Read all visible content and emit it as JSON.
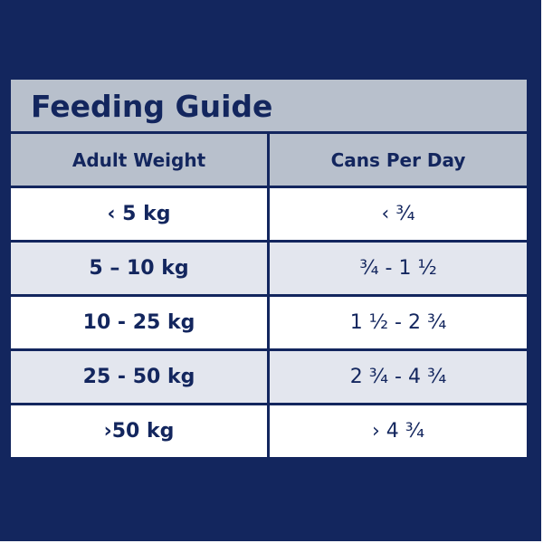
{
  "title": "Feeding Guide",
  "columns": {
    "weight": "Adult Weight",
    "cans": "Cans Per Day"
  },
  "rows": [
    {
      "weight": "‹ 5 kg",
      "cans": "‹ ¾"
    },
    {
      "weight": "5 – 10 kg",
      "cans": "¾ - 1 ½"
    },
    {
      "weight": "10 - 25 kg",
      "cans": "1 ½ - 2 ¾"
    },
    {
      "weight": "25 - 50 kg",
      "cans": "2 ¾ - 4 ¾"
    },
    {
      "weight": "›50 kg",
      "cans": "› 4 ¾"
    }
  ],
  "colors": {
    "navy": "#13265e",
    "header_gray": "#b8c0cc",
    "row_light": "#e3e6ee",
    "row_white": "#ffffff"
  }
}
